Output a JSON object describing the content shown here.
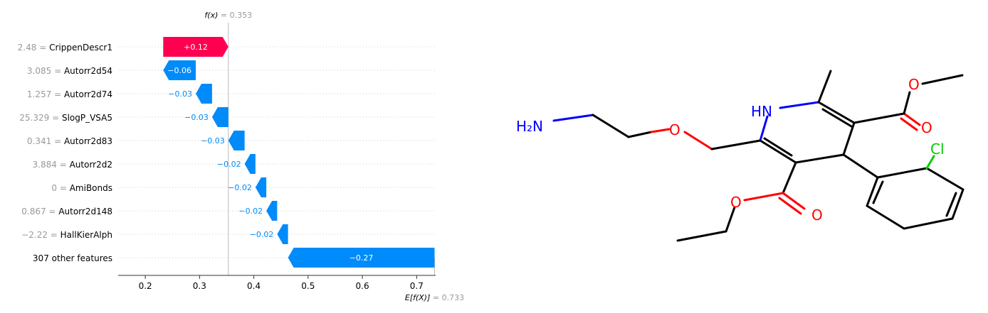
{
  "chart_data": {
    "type": "waterfall",
    "fx_label": "f(x)",
    "fx_value": "= 0.353",
    "fx": 0.353,
    "base_label": "E[f(X)]",
    "base_value": "= 0.733",
    "base": 0.733,
    "xlim": [
      0.15,
      0.735
    ],
    "xticks": [
      0.2,
      0.3,
      0.4,
      0.5,
      0.6,
      0.7
    ],
    "xtick_labels": [
      "0.2",
      "0.3",
      "0.4",
      "0.5",
      "0.6",
      "0.7"
    ],
    "features": [
      {
        "value": "2.48 =",
        "name": "CrippenDescr1",
        "contribution": 0.12,
        "label": "+0.12"
      },
      {
        "value": "3.085 =",
        "name": "Autorr2d54",
        "contribution": -0.06,
        "label": "−0.06"
      },
      {
        "value": "1.257 =",
        "name": "Autorr2d74",
        "contribution": -0.03,
        "label": "−0.03"
      },
      {
        "value": "25.329 =",
        "name": "SlogP_VSA5",
        "contribution": -0.03,
        "label": "−0.03"
      },
      {
        "value": "0.341 =",
        "name": "Autorr2d83",
        "contribution": -0.03,
        "label": "−0.03"
      },
      {
        "value": "3.884 =",
        "name": "Autorr2d2",
        "contribution": -0.02,
        "label": "−0.02"
      },
      {
        "value": "0 =",
        "name": "AmiBonds",
        "contribution": -0.02,
        "label": "−0.02"
      },
      {
        "value": "0.867 =",
        "name": "Autorr2d148",
        "contribution": -0.02,
        "label": "−0.02"
      },
      {
        "value": "−2.22 =",
        "name": "HallKierAlph",
        "contribution": -0.02,
        "label": "−0.02"
      },
      {
        "value": "",
        "name": "307 other features",
        "contribution": -0.27,
        "label": "−0.27"
      }
    ],
    "colors": {
      "positive": "#ff0051",
      "negative": "#008bfb",
      "muted": "#999999",
      "text": "#000000"
    }
  },
  "molecule": {
    "atom_labels": {
      "amine": "H₂N",
      "nh": "HN",
      "chlorine": "Cl",
      "oxygen": "O"
    },
    "colors": {
      "nitrogen": "#0000ff",
      "oxygen": "#ff0000",
      "chlorine": "#00cc00",
      "carbon": "#000000"
    }
  }
}
